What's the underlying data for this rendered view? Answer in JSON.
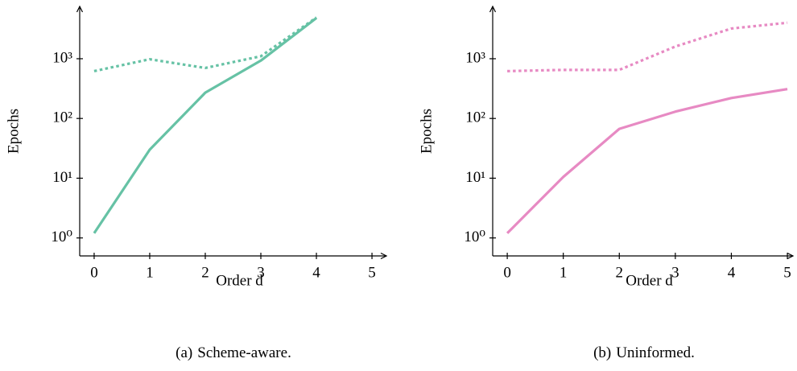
{
  "chart_data": [
    {
      "type": "line",
      "caption_label": "(a)",
      "caption": "Scheme-aware.",
      "xlabel": "Order d",
      "ylabel": "Epochs",
      "x": [
        0,
        1,
        2,
        3,
        4
      ],
      "log_y": true,
      "xlim": [
        -0.26,
        5.26
      ],
      "xticks": [
        0,
        1,
        2,
        3,
        4,
        5
      ],
      "ylim": [
        0.5,
        7500
      ],
      "yticks": [
        {
          "value": 1,
          "label": "10⁰"
        },
        {
          "value": 10,
          "label": "10¹"
        },
        {
          "value": 100,
          "label": "10²"
        },
        {
          "value": 1000,
          "label": "10³"
        }
      ],
      "series": [
        {
          "color": "#66c2a5",
          "dash": "solid",
          "values": [
            1.2,
            30,
            270,
            930,
            4800
          ]
        },
        {
          "color": "#66c2a5",
          "dash": "dotted",
          "values": [
            620,
            980,
            700,
            1100,
            4900
          ]
        }
      ]
    },
    {
      "type": "line",
      "caption_label": "(b)",
      "caption": "Uninformed.",
      "xlabel": "Order d",
      "ylabel": "Epochs",
      "x": [
        0,
        1,
        2,
        3,
        4,
        5
      ],
      "log_y": true,
      "xlim": [
        -0.26,
        5.1
      ],
      "xticks": [
        0,
        1,
        2,
        3,
        4,
        5
      ],
      "ylim": [
        0.5,
        7500
      ],
      "yticks": [
        {
          "value": 1,
          "label": "10⁰"
        },
        {
          "value": 10,
          "label": "10¹"
        },
        {
          "value": 100,
          "label": "10²"
        },
        {
          "value": 1000,
          "label": "10³"
        }
      ],
      "series": [
        {
          "color": "#e78ac3",
          "dash": "solid",
          "values": [
            1.2,
            10.5,
            67,
            130,
            220,
            310
          ]
        },
        {
          "color": "#e78ac3",
          "dash": "dotted",
          "values": [
            620,
            650,
            650,
            1600,
            3200,
            4000
          ]
        }
      ]
    }
  ]
}
